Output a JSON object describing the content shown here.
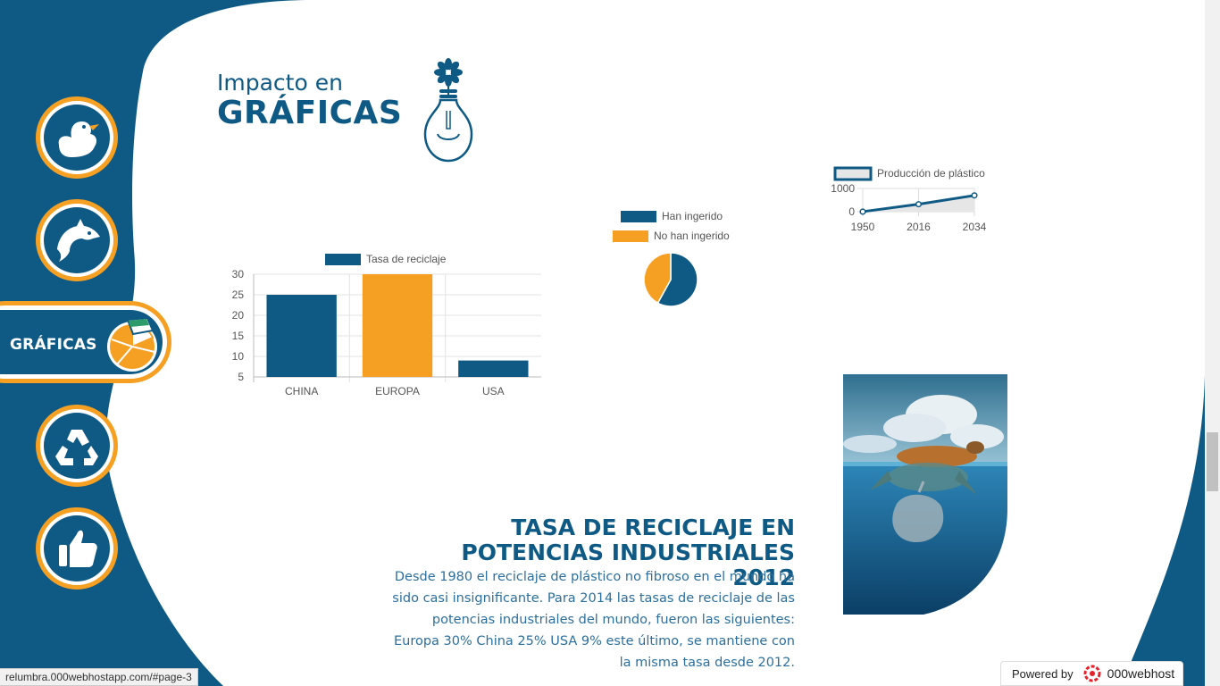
{
  "page": {
    "title_small": "Impacto en",
    "title_big": "GRÁFICAS"
  },
  "colors": {
    "primary": "#0f5a85",
    "accent": "#f6a023",
    "background": "#ffffff"
  },
  "nav": {
    "items": [
      {
        "id": "duck",
        "icon": "duck-icon"
      },
      {
        "id": "dolphin",
        "icon": "dolphin-icon"
      },
      {
        "id": "graficas",
        "icon": "pie-chart-icon",
        "label": "GRÁFICAS",
        "active": true
      },
      {
        "id": "recycle",
        "icon": "recycle-icon"
      },
      {
        "id": "like",
        "icon": "thumbs-up-icon"
      }
    ]
  },
  "chart_data": [
    {
      "type": "bar",
      "legend": "Tasa de reciclaje",
      "categories": [
        "CHINA",
        "EUROPA",
        "USA"
      ],
      "values": [
        25,
        30,
        9
      ],
      "colors": [
        "#0f5a85",
        "#f6a023",
        "#0f5a85"
      ],
      "yticks": [
        "30",
        "25",
        "20",
        "15",
        "10",
        "5"
      ],
      "ylim": [
        5,
        30
      ],
      "grid": true,
      "legend_position": "top"
    },
    {
      "type": "pie",
      "labels": [
        "Han ingerido",
        "No han ingerido"
      ],
      "values": [
        58,
        42
      ],
      "colors": [
        "#0f5a85",
        "#f6a023"
      ],
      "legend_position": "top"
    },
    {
      "type": "line",
      "series": [
        {
          "name": "Producción de plástico",
          "x": [
            "1950",
            "2016",
            "2034"
          ],
          "values": [
            2,
            322,
            700
          ]
        }
      ],
      "yticks": [
        "1000",
        "0"
      ],
      "ylim": [
        0,
        1000
      ],
      "legend_position": "top"
    }
  ],
  "section": {
    "title_line1": "TASA DE RECICLAJE EN",
    "title_line2": "POTENCIAS INDUSTRIALES 2012",
    "body_lines": [
      "Desde 1980 el reciclaje de plástico no fibroso en el mundo ha",
      "sido casi insignificante. Para 2014 las tasas de reciclaje de las",
      "potencias industriales del mundo, fueron las siguientes:",
      "Europa 30% China 25% USA 9% este último, se mantiene con",
      "la misma tasa desde 2012."
    ]
  },
  "footer": {
    "status_url": "relumbra.000webhostapp.com/#page-3",
    "powered_by": "Powered by",
    "brand": "000webhost"
  }
}
